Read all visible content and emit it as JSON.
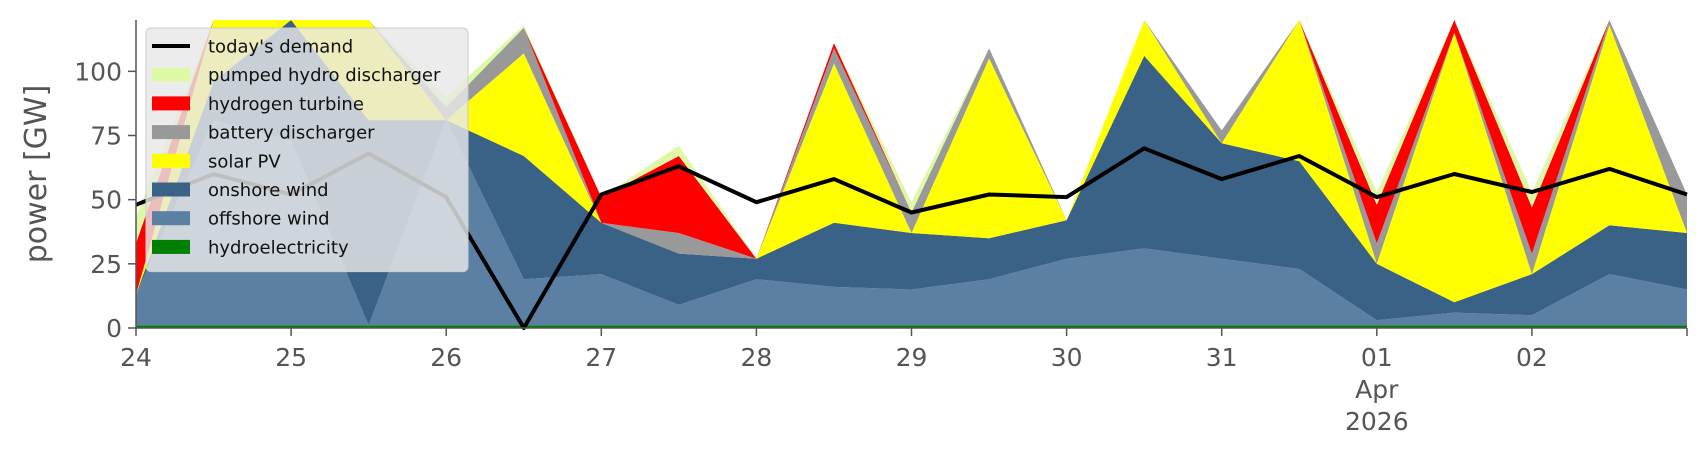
{
  "chart_data": {
    "type": "area",
    "title": "",
    "xlabel": "",
    "ylabel": "power [GW]",
    "ylim": [
      0,
      120
    ],
    "y_ticks": [
      0,
      25,
      50,
      75,
      100
    ],
    "x_range_days": [
      "2026-03-24",
      "2026-04-02"
    ],
    "x_ticks": [
      {
        "date": "2026-03-24",
        "label": "24"
      },
      {
        "date": "2026-03-25",
        "label": "25"
      },
      {
        "date": "2026-03-26",
        "label": "26"
      },
      {
        "date": "2026-03-27",
        "label": "27"
      },
      {
        "date": "2026-03-28",
        "label": "28"
      },
      {
        "date": "2026-03-29",
        "label": "29"
      },
      {
        "date": "2026-03-30",
        "label": "30"
      },
      {
        "date": "2026-03-31",
        "label": "31"
      },
      {
        "date": "2026-04-01",
        "label": "01",
        "sublabels": [
          "Apr",
          "2026"
        ]
      },
      {
        "date": "2026-04-02",
        "label": "02"
      }
    ],
    "grid": false,
    "legend_position": "top-left",
    "x": [
      "2026-03-24 00:00",
      "2026-03-24 12:00",
      "2026-03-25 00:00",
      "2026-03-25 12:00",
      "2026-03-26 00:00",
      "2026-03-26 12:00",
      "2026-03-27 00:00",
      "2026-03-27 12:00",
      "2026-03-28 00:00",
      "2026-03-28 12:00",
      "2026-03-29 00:00",
      "2026-03-29 12:00",
      "2026-03-30 00:00",
      "2026-03-30 12:00",
      "2026-03-31 00:00",
      "2026-03-31 12:00",
      "2026-04-01 00:00",
      "2026-04-01 12:00",
      "2026-04-02 00:00",
      "2026-04-02 12:00",
      "2026-04-03 00:00"
    ],
    "series": [
      {
        "name": "hydroelectricity",
        "color": "#008000",
        "values": [
          1,
          1,
          1,
          1,
          1,
          1,
          1,
          1,
          1,
          1,
          1,
          1,
          1,
          1,
          1,
          1,
          1,
          1,
          1,
          1,
          1
        ]
      },
      {
        "name": "offshore wind",
        "color": "#5b80a4",
        "values": [
          12,
          80,
          72,
          0,
          80,
          18,
          20,
          8,
          18,
          15,
          14,
          18,
          26,
          30,
          26,
          22,
          2,
          5,
          4,
          20,
          14
        ]
      },
      {
        "name": "onshore wind",
        "color": "#3a6286",
        "values": [
          0,
          15,
          58,
          80,
          0,
          48,
          20,
          20,
          8,
          25,
          22,
          16,
          15,
          75,
          45,
          42,
          22,
          4,
          16,
          19,
          22
        ]
      },
      {
        "name": "solar PV",
        "color": "#ffff00",
        "values": [
          0,
          60,
          0,
          60,
          0,
          40,
          0,
          0,
          0,
          62,
          0,
          70,
          0,
          38,
          0,
          62,
          0,
          105,
          0,
          78,
          0
        ]
      },
      {
        "name": "battery discharger",
        "color": "#999999",
        "values": [
          0,
          2,
          0,
          3,
          5,
          10,
          0,
          8,
          0,
          6,
          8,
          4,
          0,
          5,
          5,
          10,
          8,
          0,
          8,
          5,
          15
        ]
      },
      {
        "name": "hydrogen turbine",
        "color": "#ff0000",
        "values": [
          20,
          0,
          0,
          0,
          0,
          0,
          10,
          30,
          0,
          2,
          0,
          0,
          0,
          0,
          0,
          0,
          15,
          5,
          18,
          0,
          0
        ]
      },
      {
        "name": "pumped hydro discharger",
        "color": "#ddf9a6",
        "values": [
          10,
          2,
          0,
          0,
          4,
          1,
          0,
          4,
          0,
          0,
          4,
          0,
          0,
          0,
          0,
          0,
          5,
          0,
          6,
          0,
          0
        ]
      },
      {
        "name": "today's demand",
        "color": "#000000",
        "kind": "line",
        "values": [
          48,
          60,
          52,
          68,
          51,
          0,
          52,
          63,
          49,
          58,
          45,
          52,
          51,
          70,
          58,
          67,
          51,
          60,
          53,
          62,
          52
        ]
      }
    ]
  }
}
